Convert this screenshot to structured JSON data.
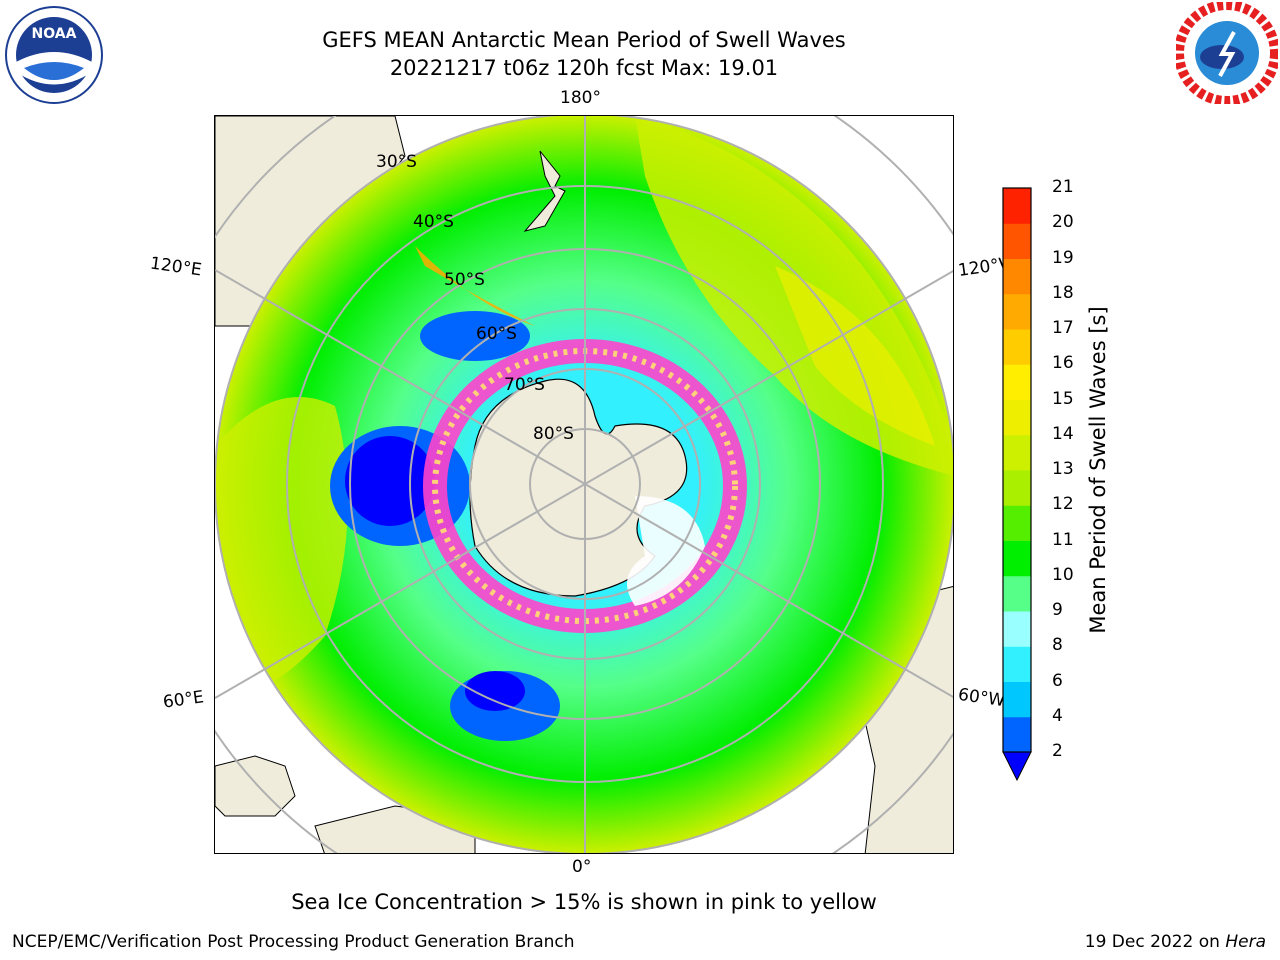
{
  "header": {
    "title_line1": "GEFS MEAN Antarctic Mean Period of Swell Waves",
    "title_line2": "20221217 t06z 120h fcst   Max: 19.01"
  },
  "logos": {
    "left": {
      "icon": "noaa-logo",
      "text": "NOAA"
    },
    "right": {
      "icon": "nws-logo",
      "text": "NATIONAL WEATHER SERVICE"
    }
  },
  "map": {
    "projection": "south-polar-stereographic",
    "longitude_labels": {
      "top": "180°",
      "bottom": "0°",
      "upper_left": "120°E",
      "upper_right": "120°W",
      "lower_left": "60°E",
      "lower_right": "60°W"
    },
    "latitude_labels": [
      "30°S",
      "40°S",
      "50°S",
      "60°S",
      "70°S",
      "80°S"
    ],
    "colors": {
      "land": "#efecdc",
      "gridline": "#b0b0b0",
      "coast": "#000000"
    }
  },
  "colorbar": {
    "title": "Mean Period of Swell Waves [s]",
    "ticks": [
      "2",
      "4",
      "6",
      "8",
      "9",
      "10",
      "11",
      "12",
      "13",
      "14",
      "15",
      "16",
      "17",
      "18",
      "19",
      "20",
      "21"
    ],
    "colors": [
      "#0064ff",
      "#00c8ff",
      "#33f0ff",
      "#99ffff",
      "#55ff88",
      "#00ee00",
      "#55ee00",
      "#aaee00",
      "#ccf000",
      "#eeee00",
      "#ffee00",
      "#ffcc00",
      "#ffaa00",
      "#ff8800",
      "#ff5500",
      "#ff2200"
    ],
    "extend_below_color": "#0000ff"
  },
  "caption": "Sea Ice Concentration > 15% is shown in pink to yellow",
  "footer": {
    "left": "NCEP/EMC/Verification Post Processing Product Generation Branch",
    "right_prefix": "19 Dec 2022 on ",
    "right_machine": "Hera"
  }
}
